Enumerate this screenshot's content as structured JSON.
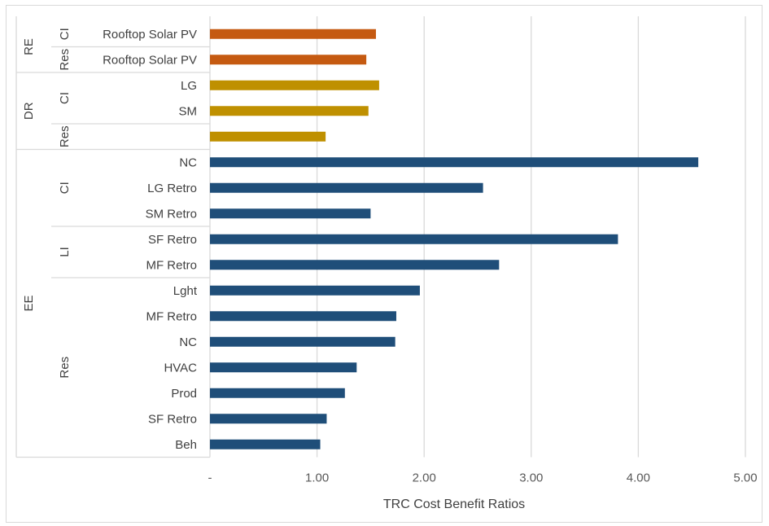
{
  "chart_data": {
    "type": "bar",
    "orientation": "horizontal",
    "title": "",
    "xlabel": "TRC Cost Benefit Ratios",
    "ylabel": "",
    "xlim": [
      0,
      5
    ],
    "x_ticks": [
      "-",
      "1.00",
      "2.00",
      "3.00",
      "4.00",
      "5.00"
    ],
    "grid": true,
    "legend": "none",
    "colors": {
      "RE": "#c55a11",
      "DR": "#bf9000",
      "EE": "#1f4e79"
    },
    "groups": [
      {
        "label": "RE",
        "subgroups": [
          {
            "label": "CI",
            "bars": [
              {
                "label": "Rooftop Solar PV",
                "value": 1.55
              }
            ]
          },
          {
            "label": "Res",
            "bars": [
              {
                "label": "Rooftop Solar PV",
                "value": 1.46
              }
            ]
          }
        ]
      },
      {
        "label": "DR",
        "subgroups": [
          {
            "label": "CI",
            "bars": [
              {
                "label": "LG",
                "value": 1.58
              },
              {
                "label": "SM",
                "value": 1.48
              }
            ]
          },
          {
            "label": "Res",
            "bars": [
              {
                "label": "",
                "value": 1.08
              }
            ]
          }
        ]
      },
      {
        "label": "EE",
        "subgroups": [
          {
            "label": "CI",
            "bars": [
              {
                "label": "NC",
                "value": 4.56
              },
              {
                "label": "LG Retro",
                "value": 2.55
              },
              {
                "label": "SM Retro",
                "value": 1.5
              }
            ]
          },
          {
            "label": "LI",
            "bars": [
              {
                "label": "SF Retro",
                "value": 3.81
              },
              {
                "label": "MF Retro",
                "value": 2.7
              }
            ]
          },
          {
            "label": "Res",
            "bars": [
              {
                "label": "Lght",
                "value": 1.96
              },
              {
                "label": "MF Retro",
                "value": 1.74
              },
              {
                "label": "NC",
                "value": 1.73
              },
              {
                "label": "HVAC",
                "value": 1.37
              },
              {
                "label": "Prod",
                "value": 1.26
              },
              {
                "label": "SF Retro",
                "value": 1.09
              },
              {
                "label": "Beh",
                "value": 1.03
              }
            ]
          }
        ]
      }
    ]
  }
}
